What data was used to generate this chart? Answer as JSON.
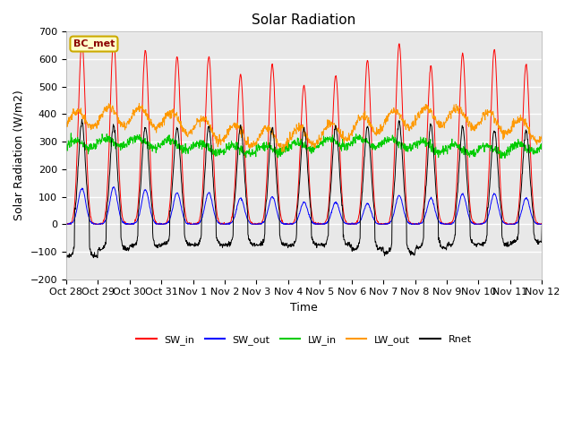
{
  "title": "Solar Radiation",
  "xlabel": "Time",
  "ylabel": "Solar Radiation (W/m2)",
  "ylim": [
    -200,
    700
  ],
  "yticks": [
    -200,
    -100,
    0,
    100,
    200,
    300,
    400,
    500,
    600,
    700
  ],
  "xtick_labels": [
    "Oct 28",
    "Oct 29",
    "Oct 30",
    "Oct 31",
    "Nov 1",
    "Nov 2",
    "Nov 3",
    "Nov 4",
    "Nov 5",
    "Nov 6",
    "Nov 7",
    "Nov 8",
    "Nov 9",
    "Nov 10",
    "Nov 11",
    "Nov 12"
  ],
  "annotation": "BC_met",
  "annotation_bg": "#ffffcc",
  "annotation_border": "#ccaa00",
  "colors": {
    "SW_in": "#ff0000",
    "SW_out": "#0000ff",
    "LW_in": "#00cc00",
    "LW_out": "#ff9900",
    "Rnet": "#000000"
  },
  "fig_bg": "#ffffff",
  "plot_bg": "#e8e8e8",
  "n_days": 15,
  "pts_per_day": 96,
  "title_fontsize": 11,
  "label_fontsize": 9,
  "tick_fontsize": 8
}
